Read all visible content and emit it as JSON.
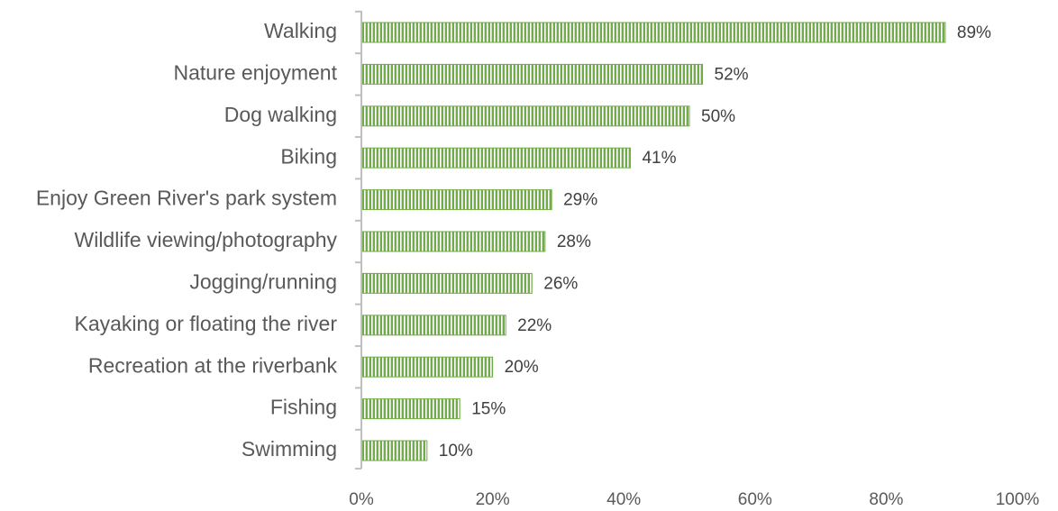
{
  "chart_data": {
    "type": "bar",
    "orientation": "horizontal",
    "categories": [
      "Walking",
      "Nature enjoyment",
      "Dog walking",
      "Biking",
      "Enjoy Green River's park system",
      "Wildlife viewing/photography",
      "Jogging/running",
      "Kayaking or floating the river",
      "Recreation at the riverbank",
      "Fishing",
      "Swimming"
    ],
    "values": [
      89,
      52,
      50,
      41,
      29,
      28,
      26,
      22,
      20,
      15,
      10
    ],
    "data_labels": [
      "89%",
      "52%",
      "50%",
      "41%",
      "29%",
      "28%",
      "26%",
      "22%",
      "20%",
      "15%",
      "10%"
    ],
    "x_ticks": [
      0,
      20,
      40,
      60,
      80,
      100
    ],
    "x_tick_labels": [
      "0%",
      "20%",
      "40%",
      "60%",
      "80%",
      "100%"
    ],
    "xlim": [
      0,
      100
    ],
    "title": "",
    "xlabel": "",
    "ylabel": "",
    "grid": false,
    "bar_color": "#70ad47",
    "bar_pattern": "vertical-stripes",
    "bar_pattern_color": "#ffffff"
  }
}
